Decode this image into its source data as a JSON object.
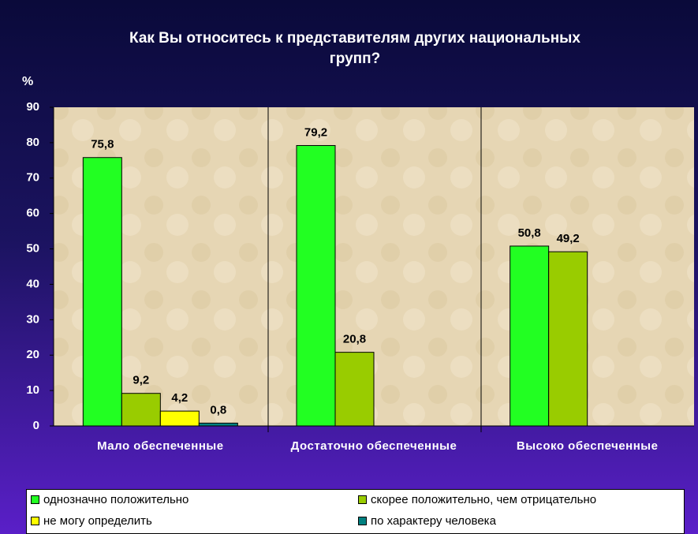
{
  "chart_data": {
    "type": "bar",
    "title": "Как Вы относитесь к представителям других национальных групп?",
    "y_label": "%",
    "categories": [
      "Мало обеспеченные",
      "Достаточно обеспеченные",
      "Высоко обеспеченные"
    ],
    "series": [
      {
        "name": "однозначно положительно",
        "color": "#22ff22",
        "values": [
          75.8,
          79.2,
          50.8
        ],
        "value_labels": [
          "75,8",
          "79,2",
          "50,8"
        ]
      },
      {
        "name": "скорее положительно, чем отрицательно",
        "color": "#99cc00",
        "values": [
          9.2,
          20.8,
          49.2
        ],
        "value_labels": [
          "9,2",
          "20,8",
          "49,2"
        ]
      },
      {
        "name": "не могу определить",
        "color": "#ffff00",
        "values": [
          4.2,
          null,
          null
        ],
        "value_labels": [
          "4,2",
          null,
          null
        ]
      },
      {
        "name": "по характеру человека",
        "color": "#008080",
        "values": [
          0.8,
          null,
          null
        ],
        "value_labels": [
          "0,8",
          null,
          null
        ]
      }
    ],
    "ylim": [
      0,
      90
    ],
    "yticks": [
      0,
      10,
      20,
      30,
      40,
      50,
      60,
      70,
      80,
      90
    ]
  }
}
